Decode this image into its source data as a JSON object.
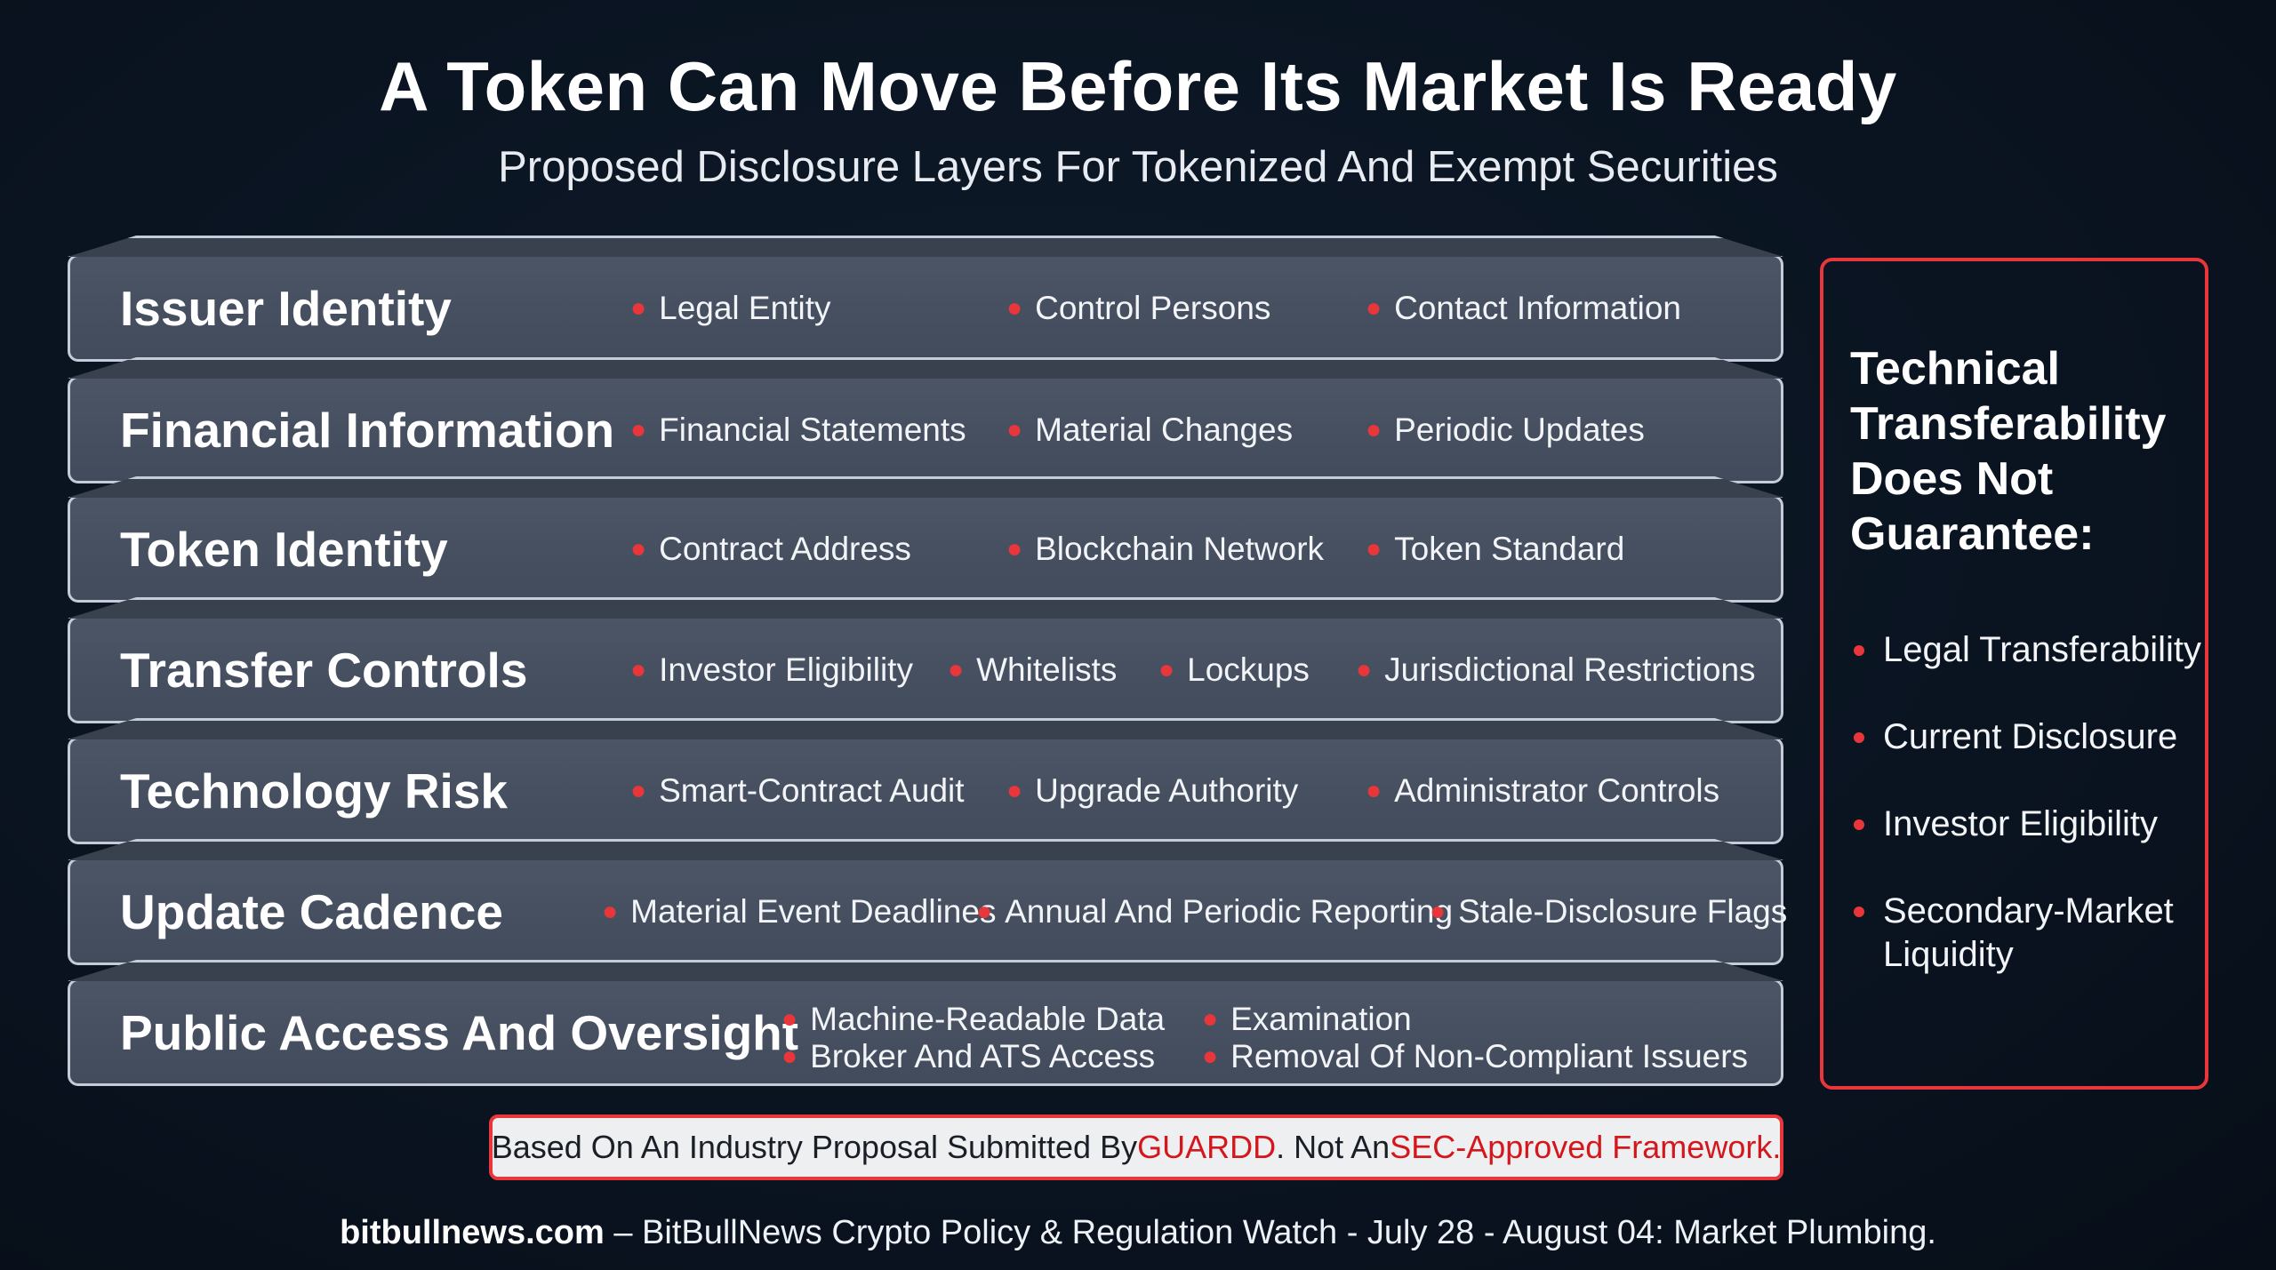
{
  "title": "A Token Can Move Before Its Market Is Ready",
  "subtitle": "Proposed Disclosure Layers For Tokenized And Exempt Securities",
  "layers": [
    {
      "title": "Issuer Identity",
      "items": [
        "Legal Entity",
        "Control Persons",
        "Contact Information"
      ]
    },
    {
      "title": "Financial Information",
      "items": [
        "Financial Statements",
        "Material Changes",
        "Periodic Updates"
      ]
    },
    {
      "title": "Token Identity",
      "items": [
        "Contract Address",
        "Blockchain Network",
        "Token Standard"
      ]
    },
    {
      "title": "Transfer Controls",
      "items": [
        "Investor Eligibility",
        "Whitelists",
        "Lockups",
        "Jurisdictional Restrictions"
      ]
    },
    {
      "title": "Technology Risk",
      "items": [
        "Smart-Contract Audit",
        "Upgrade Authority",
        "Administrator Controls"
      ]
    },
    {
      "title": "Update Cadence",
      "items": [
        "Material Event Deadlines",
        "Annual And Periodic Reporting",
        "Stale-Disclosure Flags"
      ]
    },
    {
      "title": "Public Access And Oversight",
      "items": [
        "Machine-Readable Data",
        "Broker And ATS Access",
        "Examination",
        "Removal Of Non-Compliant Issuers"
      ]
    }
  ],
  "side_panel": {
    "heading_lines": [
      "Technical",
      "Transferability",
      "Does Not",
      "Guarantee:"
    ],
    "items": [
      "Legal Transferability",
      "Current Disclosure",
      "Investor Eligibility",
      "Secondary-Market Liquidity"
    ]
  },
  "note": {
    "part1": "Based On An Industry Proposal Submitted By ",
    "highlight1": "GUARDD",
    "part2": ". Not An ",
    "highlight2": "SEC-Approved Framework."
  },
  "footer": {
    "site": "bitbullnews.com",
    "text": " – BitBullNews Crypto Policy & Regulation Watch - July 28 - August 04: Market Plumbing."
  },
  "colors": {
    "background": "#0a1421",
    "layer_fill": "#465060",
    "layer_border": "#c3ccd8",
    "accent_red": "#e8363a"
  }
}
